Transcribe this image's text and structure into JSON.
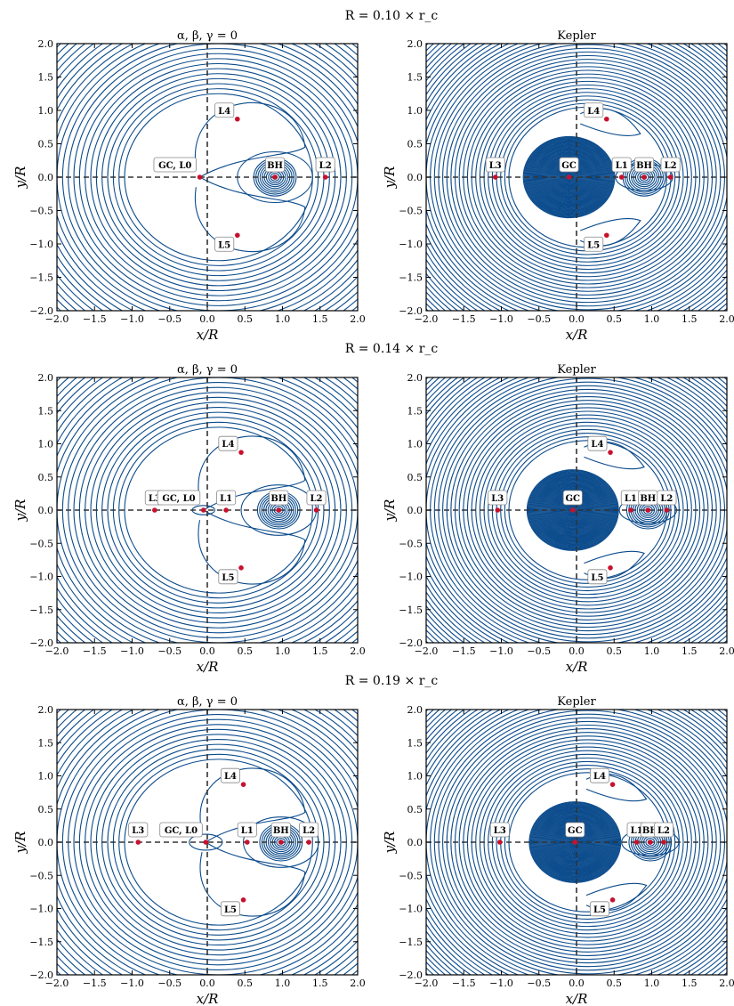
{
  "row_titles": [
    "R = 0.10 × r_c",
    "R = 0.14 × r_c",
    "R = 0.19 × r_c"
  ],
  "panel_titles": {
    "left": "α, β, γ = 0",
    "right": "Kepler"
  },
  "xlabel": "x/R",
  "ylabel": "y/R",
  "colors": {
    "contour": "#0b4b8c",
    "point": "#c8102e",
    "dash": "#333333"
  },
  "chart_data": [
    {
      "type": "contour",
      "row": 0,
      "model": "alpha-beta-gamma-zero",
      "xlim": [
        -2.0,
        2.0
      ],
      "ylim": [
        -2.0,
        2.0
      ],
      "xticks": [
        -2.0,
        -1.5,
        -1.0,
        -0.5,
        0.0,
        0.5,
        1.0,
        1.5,
        2.0
      ],
      "yticks": [
        -2.0,
        -1.5,
        -1.0,
        -0.5,
        0.0,
        0.5,
        1.0,
        1.5,
        2.0
      ],
      "points": [
        {
          "name": "GC, L0",
          "x": -0.1,
          "y": 0.0
        },
        {
          "name": "BH",
          "x": 0.9,
          "y": 0.0
        },
        {
          "name": "L2",
          "x": 1.57,
          "y": 0.0
        },
        {
          "name": "L4",
          "x": 0.4,
          "y": 0.87
        },
        {
          "name": "L5",
          "x": 0.4,
          "y": -0.87
        }
      ]
    },
    {
      "type": "contour",
      "row": 0,
      "model": "kepler",
      "xlim": [
        -2.0,
        2.0
      ],
      "ylim": [
        -2.0,
        2.0
      ],
      "xticks": [
        -2.0,
        -1.5,
        -1.0,
        -0.5,
        0.0,
        0.5,
        1.0,
        1.5,
        2.0
      ],
      "yticks": [
        -2.0,
        -1.5,
        -1.0,
        -0.5,
        0.0,
        0.5,
        1.0,
        1.5,
        2.0
      ],
      "points": [
        {
          "name": "L3",
          "x": -1.08,
          "y": 0.0
        },
        {
          "name": "GC",
          "x": -0.1,
          "y": 0.0
        },
        {
          "name": "L1",
          "x": 0.6,
          "y": 0.0
        },
        {
          "name": "BH",
          "x": 0.9,
          "y": 0.0
        },
        {
          "name": "L2",
          "x": 1.25,
          "y": 0.0
        },
        {
          "name": "L4",
          "x": 0.4,
          "y": 0.87
        },
        {
          "name": "L5",
          "x": 0.4,
          "y": -0.87
        }
      ]
    },
    {
      "type": "contour",
      "row": 1,
      "model": "alpha-beta-gamma-zero",
      "xlim": [
        -2.0,
        2.0
      ],
      "ylim": [
        -2.0,
        2.0
      ],
      "xticks": [
        -2.0,
        -1.5,
        -1.0,
        -0.5,
        0.0,
        0.5,
        1.0,
        1.5,
        2.0
      ],
      "yticks": [
        -2.0,
        -1.5,
        -1.0,
        -0.5,
        0.0,
        0.5,
        1.0,
        1.5,
        2.0
      ],
      "points": [
        {
          "name": "L3",
          "x": -0.7,
          "y": 0.0
        },
        {
          "name": "GC, L0",
          "x": -0.05,
          "y": 0.0
        },
        {
          "name": "L1",
          "x": 0.25,
          "y": 0.0
        },
        {
          "name": "BH",
          "x": 0.95,
          "y": 0.0
        },
        {
          "name": "L2",
          "x": 1.45,
          "y": 0.0
        },
        {
          "name": "L4",
          "x": 0.45,
          "y": 0.87
        },
        {
          "name": "L5",
          "x": 0.45,
          "y": -0.87
        }
      ]
    },
    {
      "type": "contour",
      "row": 1,
      "model": "kepler",
      "xlim": [
        -2.0,
        2.0
      ],
      "ylim": [
        -2.0,
        2.0
      ],
      "xticks": [
        -2.0,
        -1.5,
        -1.0,
        -0.5,
        0.0,
        0.5,
        1.0,
        1.5,
        2.0
      ],
      "yticks": [
        -2.0,
        -1.5,
        -1.0,
        -0.5,
        0.0,
        0.5,
        1.0,
        1.5,
        2.0
      ],
      "points": [
        {
          "name": "L3",
          "x": -1.05,
          "y": 0.0
        },
        {
          "name": "GC",
          "x": -0.05,
          "y": 0.0
        },
        {
          "name": "L1",
          "x": 0.72,
          "y": 0.0
        },
        {
          "name": "BH",
          "x": 0.95,
          "y": 0.0
        },
        {
          "name": "L2",
          "x": 1.2,
          "y": 0.0
        },
        {
          "name": "L4",
          "x": 0.45,
          "y": 0.87
        },
        {
          "name": "L5",
          "x": 0.45,
          "y": -0.87
        }
      ]
    },
    {
      "type": "contour",
      "row": 2,
      "model": "alpha-beta-gamma-zero",
      "xlim": [
        -2.0,
        2.0
      ],
      "ylim": [
        -2.0,
        2.0
      ],
      "xticks": [
        -2.0,
        -1.5,
        -1.0,
        -0.5,
        0.0,
        0.5,
        1.0,
        1.5,
        2.0
      ],
      "yticks": [
        -2.0,
        -1.5,
        -1.0,
        -0.5,
        0.0,
        0.5,
        1.0,
        1.5,
        2.0
      ],
      "points": [
        {
          "name": "L3",
          "x": -0.92,
          "y": 0.0
        },
        {
          "name": "GC, L0",
          "x": -0.02,
          "y": 0.0
        },
        {
          "name": "L1",
          "x": 0.53,
          "y": 0.0
        },
        {
          "name": "BH",
          "x": 0.98,
          "y": 0.0
        },
        {
          "name": "L2",
          "x": 1.35,
          "y": 0.0
        },
        {
          "name": "L4",
          "x": 0.48,
          "y": 0.87
        },
        {
          "name": "L5",
          "x": 0.48,
          "y": -0.87
        }
      ]
    },
    {
      "type": "contour",
      "row": 2,
      "model": "kepler",
      "xlim": [
        -2.0,
        2.0
      ],
      "ylim": [
        -2.0,
        2.0
      ],
      "xticks": [
        -2.0,
        -1.5,
        -1.0,
        -0.5,
        0.0,
        0.5,
        1.0,
        1.5,
        2.0
      ],
      "yticks": [
        -2.0,
        -1.5,
        -1.0,
        -0.5,
        0.0,
        0.5,
        1.0,
        1.5,
        2.0
      ],
      "points": [
        {
          "name": "L3",
          "x": -1.02,
          "y": 0.0
        },
        {
          "name": "GC",
          "x": -0.02,
          "y": 0.0
        },
        {
          "name": "L1",
          "x": 0.8,
          "y": 0.0
        },
        {
          "name": "BH",
          "x": 0.98,
          "y": 0.0
        },
        {
          "name": "L2",
          "x": 1.16,
          "y": 0.0
        },
        {
          "name": "L4",
          "x": 0.48,
          "y": 0.87
        },
        {
          "name": "L5",
          "x": 0.48,
          "y": -0.87
        }
      ]
    }
  ]
}
